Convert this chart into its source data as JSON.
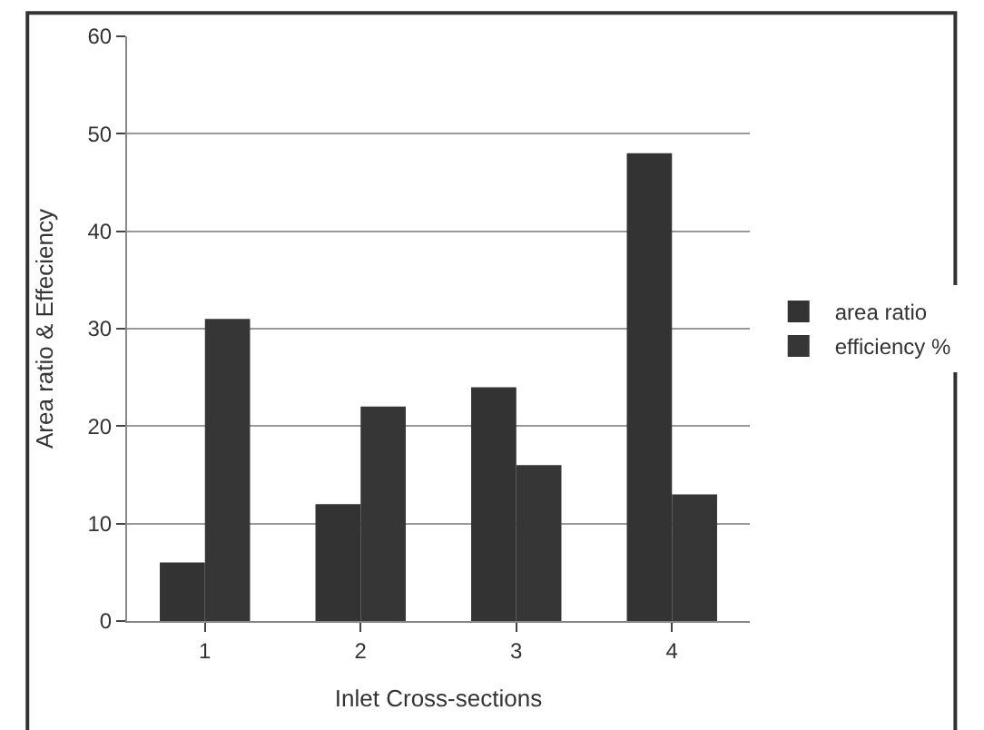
{
  "chart_data": {
    "type": "bar",
    "xlabel": "Inlet Cross-sections",
    "ylabel": "Area ratio & Effeciency",
    "categories": [
      "1",
      "2",
      "3",
      "4"
    ],
    "series": [
      {
        "name": "area ratio",
        "color": "#333333",
        "values": [
          6,
          12,
          24,
          48
        ]
      },
      {
        "name": "efficiency %",
        "color": "#363636",
        "values": [
          31,
          22,
          16,
          13
        ]
      }
    ],
    "ylim": [
      0,
      60
    ],
    "yticks": [
      0,
      10,
      20,
      30,
      40,
      50,
      60
    ],
    "grid": "y",
    "legend": "right"
  }
}
